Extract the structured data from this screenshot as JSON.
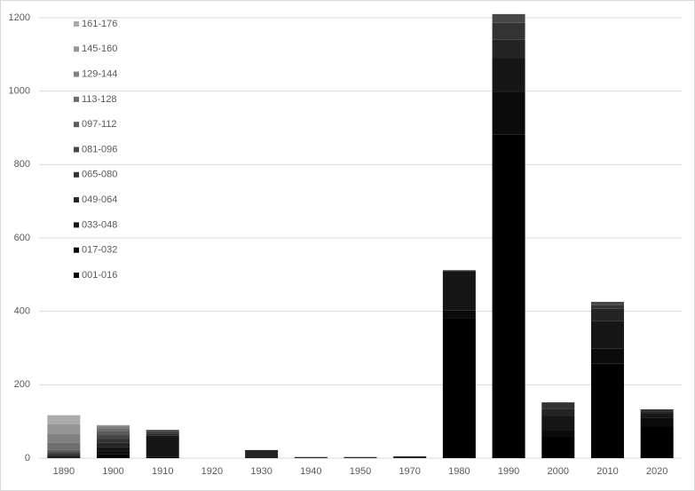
{
  "chart_data": {
    "type": "stacked_bar",
    "categories": [
      "1890",
      "1900",
      "1910",
      "1920",
      "1930",
      "1940",
      "1950",
      "1970",
      "1980",
      "1990",
      "2000",
      "2010",
      "2020"
    ],
    "category_label_colors": [
      "#595959",
      "#595959",
      "#595959",
      "#e03c3c",
      "#595959",
      "#595959",
      "#595959",
      "#595959",
      "#595959",
      "#595959",
      "#595959",
      "#595959",
      "#595959"
    ],
    "series": [
      {
        "name": "001-016",
        "color": "#000000",
        "values": [
          2,
          10,
          3,
          0,
          0,
          0,
          0,
          0,
          382,
          881,
          58,
          257,
          87
        ]
      },
      {
        "name": "017-032",
        "color": "#0b0b0b",
        "values": [
          2,
          8,
          3,
          0,
          0,
          0,
          0,
          0,
          20,
          118,
          17,
          41,
          24
        ]
      },
      {
        "name": "033-048",
        "color": "#161616",
        "values": [
          2,
          12,
          55,
          0,
          0,
          0,
          0,
          0,
          108,
          92,
          41,
          75,
          10
        ]
      },
      {
        "name": "049-064",
        "color": "#242424",
        "values": [
          3,
          12,
          5,
          0,
          22,
          3,
          3,
          5,
          2,
          49,
          19,
          34,
          7
        ]
      },
      {
        "name": "065-080",
        "color": "#333333",
        "values": [
          4,
          10,
          6,
          0,
          0,
          0,
          0,
          0,
          0,
          46,
          17,
          10,
          5
        ]
      },
      {
        "name": "081-096",
        "color": "#474747",
        "values": [
          4,
          12,
          5,
          0,
          0,
          0,
          0,
          0,
          0,
          24,
          0,
          9,
          0
        ]
      },
      {
        "name": "097-112",
        "color": "#5c5c5c",
        "values": [
          5,
          10,
          0,
          0,
          0,
          0,
          0,
          0,
          0,
          0,
          0,
          0,
          0
        ]
      },
      {
        "name": "113-128",
        "color": "#6e6e6e",
        "values": [
          20,
          8,
          0,
          0,
          0,
          0,
          0,
          0,
          0,
          0,
          0,
          0,
          0
        ]
      },
      {
        "name": "129-144",
        "color": "#808080",
        "values": [
          25,
          5,
          0,
          0,
          0,
          0,
          0,
          0,
          0,
          0,
          0,
          0,
          0
        ]
      },
      {
        "name": "145-160",
        "color": "#959595",
        "values": [
          25,
          3,
          0,
          0,
          0,
          0,
          0,
          0,
          0,
          0,
          0,
          0,
          0
        ]
      },
      {
        "name": "161-176",
        "color": "#ababab",
        "values": [
          25,
          0,
          0,
          0,
          0,
          0,
          0,
          0,
          0,
          0,
          0,
          0,
          0
        ]
      }
    ],
    "ylim": [
      0,
      1200
    ],
    "yticks": [
      0,
      200,
      400,
      600,
      800,
      1000,
      1200
    ],
    "grid": true,
    "legend": "upper left"
  }
}
